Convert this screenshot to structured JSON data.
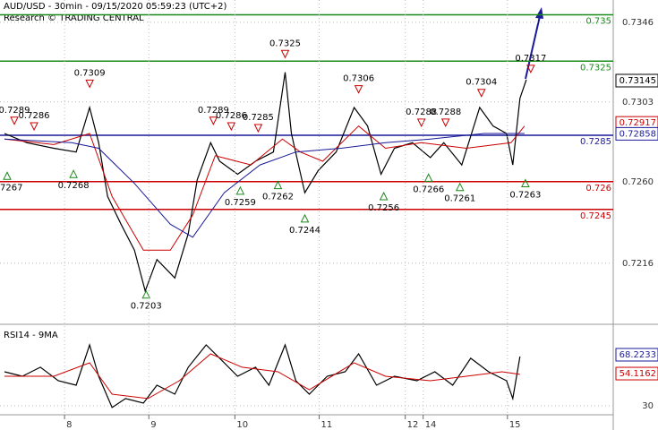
{
  "chart_data": [
    {
      "type": "line",
      "title": "AUD/USD - 30min - 09/15/2020 05:59:23 (UTC+2)",
      "subtitle": "Research © TRADING CENTRAL",
      "xlim": [
        0,
        342
      ],
      "ylim": [
        0.7184,
        0.7358
      ],
      "yticks": [
        0.7346,
        0.7303,
        {
          "value": 0.726,
          "label": "0.7260"
        },
        0.7216
      ],
      "grid": true,
      "series": [
        {
          "name": "AUD/USD",
          "color": "#000000",
          "x": [
            2.5,
            15,
            30,
            42.5,
            50,
            55,
            60,
            67.5,
            75,
            81,
            87.5,
            97.5,
            105,
            110,
            117.5,
            122.5,
            132.5,
            142.5,
            152.5,
            159,
            162.5,
            170,
            177.5,
            187.5,
            197.5,
            205,
            212.5,
            220,
            230,
            240,
            247.5,
            257.5,
            267.5,
            275,
            282.5,
            286,
            290,
            293.5
          ],
          "values": [
            0.7286,
            0.7281,
            0.7278,
            0.7276,
            0.73,
            0.7281,
            0.7252,
            0.7237,
            0.7223,
            0.7201,
            0.7218,
            0.7208,
            0.7232,
            0.7261,
            0.7281,
            0.7271,
            0.7264,
            0.7271,
            0.7276,
            0.7319,
            0.7286,
            0.7254,
            0.7266,
            0.7276,
            0.73,
            0.729,
            0.7264,
            0.7278,
            0.7281,
            0.7273,
            0.7281,
            0.7269,
            0.73,
            0.729,
            0.7286,
            0.7269,
            0.7305,
            0.7315
          ]
        },
        {
          "name": "MA fast",
          "color": "#cc0000",
          "x": [
            2.5,
            30,
            50,
            62.5,
            80,
            95,
            107.5,
            120,
            140,
            157.5,
            167.5,
            180,
            200,
            215,
            235,
            260,
            285,
            292.5
          ],
          "values": [
            0.7283,
            0.728,
            0.7286,
            0.7252,
            0.7223,
            0.7223,
            0.7242,
            0.7274,
            0.7269,
            0.7283,
            0.7276,
            0.7271,
            0.729,
            0.7278,
            0.7281,
            0.7278,
            0.7281,
            0.729
          ]
        },
        {
          "name": "MA slow",
          "color": "#1a1a99",
          "x": [
            2.5,
            40,
            55,
            75,
            95,
            107.5,
            125,
            145,
            165,
            190,
            215,
            240,
            270,
            292.5
          ],
          "values": [
            0.7283,
            0.7281,
            0.7278,
            0.7259,
            0.7237,
            0.723,
            0.7254,
            0.7269,
            0.7276,
            0.7278,
            0.7281,
            0.7283,
            0.7286,
            0.7286
          ]
        }
      ],
      "levels": [
        {
          "value": 0.735,
          "color": "#1a8a1a"
        },
        {
          "value": 0.7325,
          "color": "#1a8a1a"
        },
        {
          "value": 0.7285,
          "color": "#1a1a99"
        },
        {
          "value": 0.726,
          "color": "#cc0000"
        },
        {
          "value": 0.7245,
          "color": "#cc0000"
        }
      ],
      "price_tags": [
        {
          "value": 0.73145,
          "color": "#000000"
        },
        {
          "value": 0.72917,
          "color": "#cc0000"
        },
        {
          "value": 0.72858,
          "color": "#1a1a99"
        }
      ],
      "annotations": [
        {
          "x": 8,
          "value": 0.7289,
          "kind": "high"
        },
        {
          "x": 19,
          "value": 0.7286,
          "kind": "high"
        },
        {
          "x": 50,
          "value": 0.7309,
          "kind": "high"
        },
        {
          "x": 119,
          "value": 0.7289,
          "kind": "high"
        },
        {
          "x": 129,
          "value": 0.7286,
          "kind": "high"
        },
        {
          "x": 144,
          "value": 0.7285,
          "kind": "high"
        },
        {
          "x": 159,
          "value": 0.7325,
          "kind": "high"
        },
        {
          "x": 200,
          "value": 0.7306,
          "kind": "high"
        },
        {
          "x": 235,
          "value": 0.7288,
          "kind": "high"
        },
        {
          "x": 248.5,
          "value": 0.7288,
          "kind": "high"
        },
        {
          "x": 268.5,
          "value": 0.7304,
          "kind": "high"
        },
        {
          "x": 296,
          "value": 0.7317,
          "kind": "high"
        },
        {
          "x": 4,
          "value": 0.7267,
          "kind": "low"
        },
        {
          "x": 41,
          "value": 0.7268,
          "kind": "low"
        },
        {
          "x": 81.5,
          "value": 0.7203,
          "kind": "low"
        },
        {
          "x": 134,
          "value": 0.7259,
          "kind": "low"
        },
        {
          "x": 155,
          "value": 0.7262,
          "kind": "low"
        },
        {
          "x": 170,
          "value": 0.7244,
          "kind": "low"
        },
        {
          "x": 214,
          "value": 0.7256,
          "kind": "low"
        },
        {
          "x": 239,
          "value": 0.7266,
          "kind": "low"
        },
        {
          "x": 256.5,
          "value": 0.7261,
          "kind": "low"
        },
        {
          "x": 293,
          "value": 0.7263,
          "kind": "low"
        }
      ]
    },
    {
      "type": "line",
      "title": "RSI14 - 9MA",
      "xlim": [
        0,
        342
      ],
      "ylim": [
        18.6,
        89
      ],
      "yticks": [
        30
      ],
      "xticks": [
        {
          "value": 36,
          "label": "8"
        },
        {
          "value": 83,
          "label": "9"
        },
        {
          "value": 131,
          "label": "10"
        },
        {
          "value": 178,
          "label": "11"
        },
        {
          "value": 226,
          "label": "12"
        },
        {
          "value": 236,
          "label": "14"
        },
        {
          "value": 283,
          "label": "15"
        }
      ],
      "series": [
        {
          "name": "RSI14",
          "color": "#000000",
          "x": [
            2.5,
            12.5,
            22.5,
            32.5,
            42.5,
            50,
            55,
            62.5,
            70,
            80,
            87.5,
            97.5,
            105,
            115,
            122.5,
            132.5,
            142.5,
            150,
            159,
            165,
            172.5,
            182.5,
            192.5,
            200,
            210,
            220,
            232.5,
            242.5,
            252.5,
            262.5,
            272.5,
            282.5,
            286,
            290
          ],
          "values": [
            55.5,
            52.1,
            58.9,
            48.8,
            45.4,
            75.6,
            52.1,
            28.7,
            35.4,
            32.0,
            45.4,
            38.7,
            58.9,
            75.6,
            65.6,
            52.1,
            58.9,
            45.4,
            75.6,
            48.8,
            38.7,
            52.1,
            55.5,
            68.9,
            45.4,
            52.1,
            48.8,
            55.5,
            45.4,
            65.6,
            55.5,
            48.8,
            35.4,
            66.9
          ]
        },
        {
          "name": "9MA",
          "color": "#cc0000",
          "x": [
            2.5,
            30,
            50,
            62.5,
            82.5,
            100,
            117.5,
            135,
            155,
            172.5,
            197.5,
            215,
            240,
            260,
            280,
            290
          ],
          "values": [
            52.1,
            52.1,
            62.2,
            38.7,
            35.4,
            48.8,
            68.9,
            58.9,
            55.5,
            42.1,
            62.2,
            52.1,
            48.8,
            52.1,
            55.5,
            53.5
          ]
        }
      ],
      "price_tags": [
        {
          "value": 68.2233,
          "color": "#1a1a99"
        },
        {
          "value": 54.1162,
          "color": "#cc0000"
        }
      ]
    }
  ]
}
